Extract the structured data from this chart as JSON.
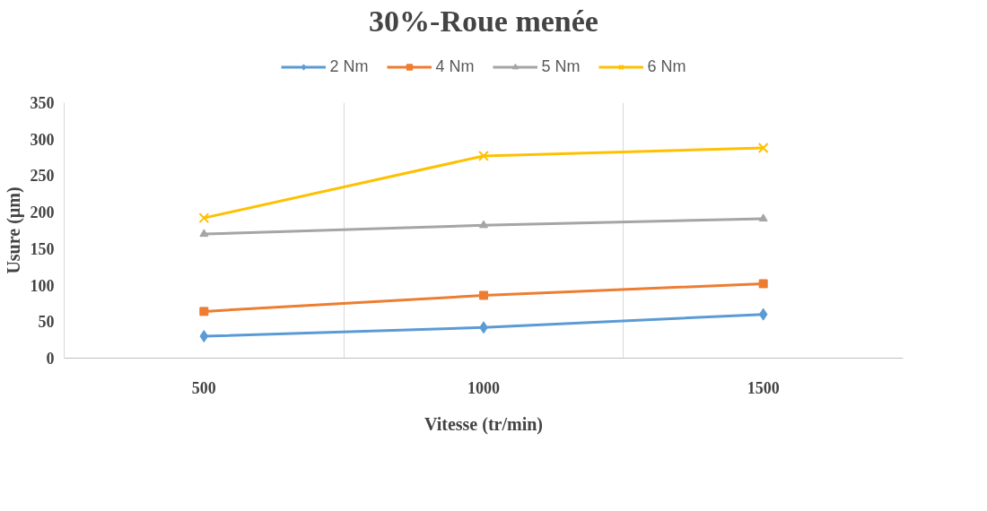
{
  "chart_data": {
    "type": "line",
    "title": "30%-Roue menée",
    "xlabel": "Vitesse (tr/min)",
    "ylabel": "Usure (µm)",
    "categories": [
      "500",
      "1000",
      "1500"
    ],
    "series": [
      {
        "name": "2 Nm",
        "color": "#5b9bd5",
        "marker": "diamond",
        "values": [
          30,
          42,
          60
        ]
      },
      {
        "name": "4 Nm",
        "color": "#ed7d31",
        "marker": "square",
        "values": [
          64,
          86,
          102
        ]
      },
      {
        "name": "5 Nm",
        "color": "#a5a5a5",
        "marker": "triangle",
        "values": [
          170,
          182,
          191
        ]
      },
      {
        "name": "6 Nm",
        "color": "#ffc000",
        "marker": "cross",
        "values": [
          192,
          277,
          288
        ]
      }
    ],
    "ylim": [
      0,
      350
    ],
    "yticks": [
      0,
      50,
      100,
      150,
      200,
      250,
      300,
      350
    ],
    "grid": "x",
    "legend": "top",
    "line_style": "solid"
  }
}
